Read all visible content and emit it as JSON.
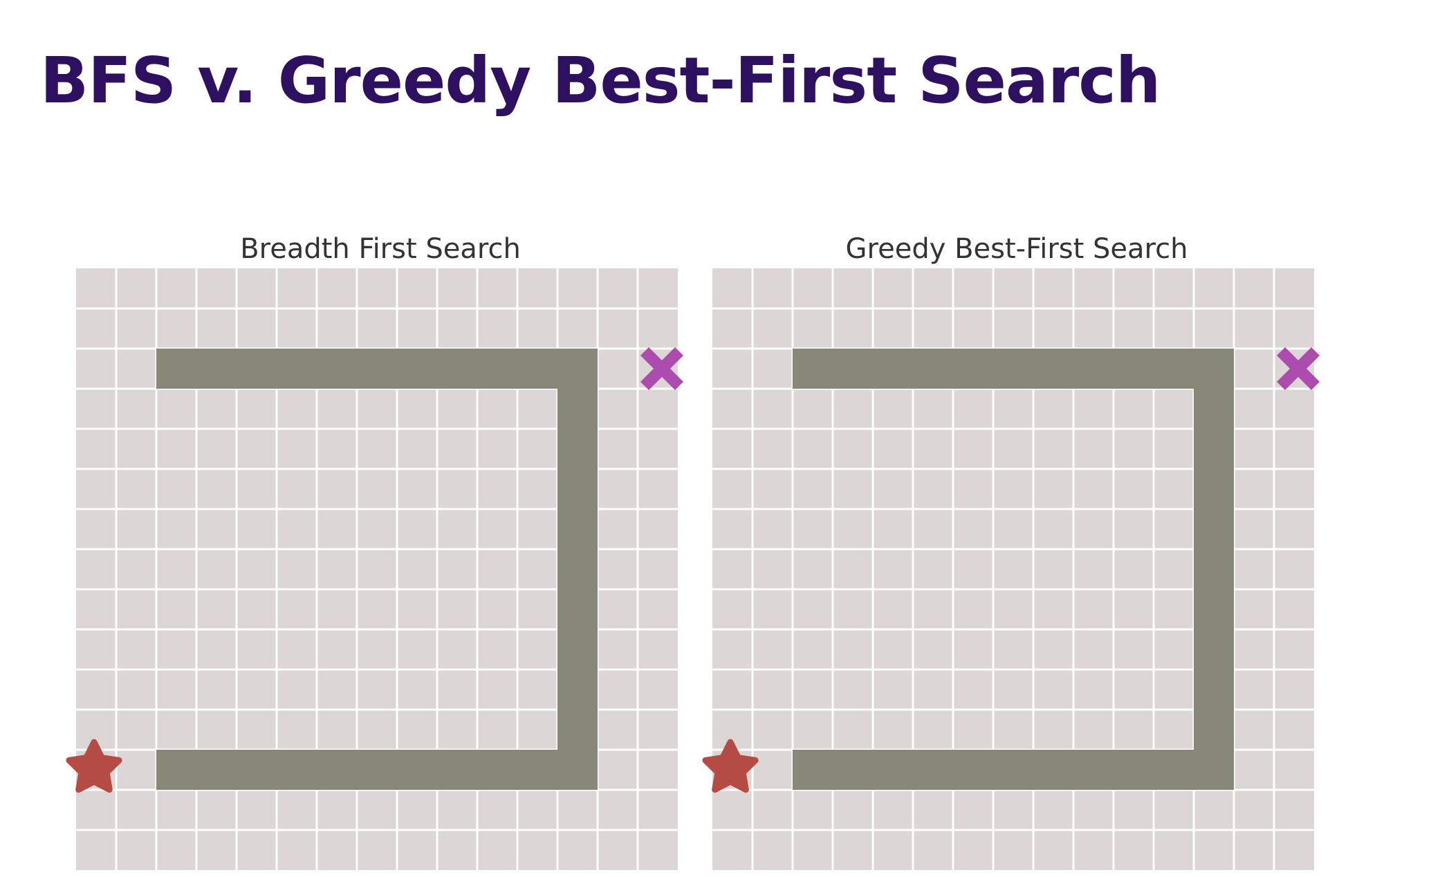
{
  "title": "BFS v. Greedy Best-First Search",
  "colors": {
    "title": "#2e1060",
    "panel_title": "#333333",
    "cell": "#ddd6d6",
    "grid_line": "#ffffff",
    "wall": "#888878",
    "start": "#b44b45",
    "goal": "#ab4cae"
  },
  "grid": {
    "cols": 15,
    "rows": 15,
    "walls": [
      {
        "row": 2,
        "col_start": 2,
        "col_end": 12
      },
      {
        "row": 12,
        "col_start": 2,
        "col_end": 12
      },
      {
        "col": 12,
        "row_start": 2,
        "row_end": 12
      }
    ],
    "start": {
      "row": 12,
      "col": 0,
      "icon": "star-icon"
    },
    "goal": {
      "row": 2,
      "col": 14,
      "icon": "x-icon"
    }
  },
  "panels": [
    {
      "title": "Breadth First Search"
    },
    {
      "title": "Greedy Best-First Search"
    }
  ]
}
